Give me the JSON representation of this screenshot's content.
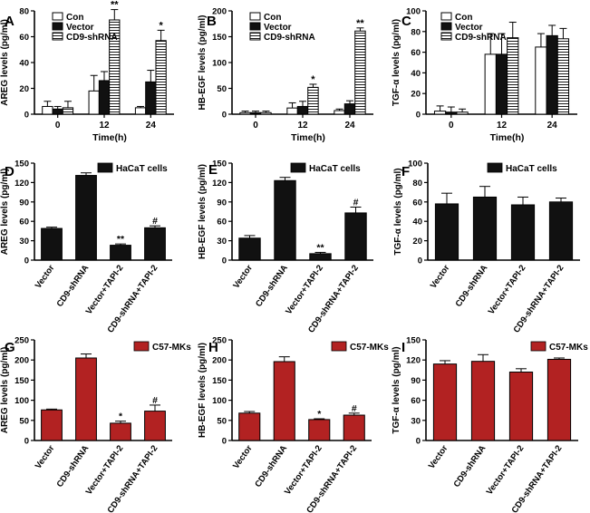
{
  "colors": {
    "black": "#111111",
    "red": "#b22222",
    "white": "#ffffff",
    "axis": "#000000"
  },
  "chart_data": [
    {
      "panel": "A",
      "type": "bar",
      "ylabel": "AREG levels (pg/ml)",
      "xlabel": "Time(h)",
      "ylim": [
        0,
        80
      ],
      "yticks": [
        0,
        20,
        40,
        60,
        80
      ],
      "categories": [
        "0",
        "12",
        "24"
      ],
      "legend": [
        "Con",
        "Vector",
        "CD9-shRNA"
      ],
      "series": [
        {
          "name": "Con",
          "style": "white",
          "values": [
            6,
            18,
            5
          ],
          "errors": [
            4,
            12,
            1
          ]
        },
        {
          "name": "Vector",
          "style": "black",
          "values": [
            4,
            26,
            25
          ],
          "errors": [
            2,
            7,
            9
          ]
        },
        {
          "name": "CD9-shRNA",
          "style": "stripe",
          "values": [
            5,
            73,
            57
          ],
          "errors": [
            5,
            8,
            8
          ]
        }
      ],
      "sig": [
        {
          "cat": 1,
          "series": 2,
          "text": "**"
        },
        {
          "cat": 2,
          "series": 2,
          "text": "*"
        }
      ]
    },
    {
      "panel": "B",
      "type": "bar",
      "ylabel": "HB-EGF levels (pg/ml)",
      "xlabel": "Time(h)",
      "ylim": [
        0,
        200
      ],
      "yticks": [
        0,
        50,
        100,
        150,
        200
      ],
      "categories": [
        "0",
        "12",
        "24"
      ],
      "legend": [
        "Con",
        "Vector",
        "CD9-shRNA"
      ],
      "series": [
        {
          "name": "Con",
          "style": "white",
          "values": [
            3,
            12,
            7
          ],
          "errors": [
            3,
            10,
            3
          ]
        },
        {
          "name": "Vector",
          "style": "black",
          "values": [
            3,
            15,
            20
          ],
          "errors": [
            3,
            10,
            6
          ]
        },
        {
          "name": "CD9-shRNA",
          "style": "stripe",
          "values": [
            3,
            52,
            161
          ],
          "errors": [
            3,
            6,
            6
          ]
        }
      ],
      "sig": [
        {
          "cat": 1,
          "series": 2,
          "text": "*"
        },
        {
          "cat": 2,
          "series": 2,
          "text": "**"
        }
      ]
    },
    {
      "panel": "C",
      "type": "bar",
      "ylabel": "TGF-α levels (pg/ml)",
      "xlabel": "Time(h)",
      "ylim": [
        0,
        100
      ],
      "yticks": [
        0,
        20,
        40,
        60,
        80,
        100
      ],
      "categories": [
        "0",
        "12",
        "24"
      ],
      "legend": [
        "Con",
        "Vector",
        "CD9-shRNA"
      ],
      "series": [
        {
          "name": "Con",
          "style": "white",
          "values": [
            3,
            58,
            65
          ],
          "errors": [
            5,
            20,
            13
          ]
        },
        {
          "name": "Vector",
          "style": "black",
          "values": [
            2,
            58,
            76
          ],
          "errors": [
            5,
            20,
            10
          ]
        },
        {
          "name": "CD9-shRNA",
          "style": "stripe",
          "values": [
            2,
            74,
            73
          ],
          "errors": [
            3,
            15,
            10
          ]
        }
      ],
      "sig": []
    },
    {
      "panel": "D",
      "type": "bar",
      "ylabel": "AREG levels (pg/ml)",
      "ylim": [
        0,
        150
      ],
      "yticks": [
        0,
        30,
        60,
        90,
        120,
        150
      ],
      "categories": [
        "Vector",
        "CD9-shRNA",
        "Vector+TAPI-2",
        "CD9-shRNA+TAPI-2"
      ],
      "legend": [
        "HaCaT cells"
      ],
      "color": "black",
      "values": [
        49,
        131,
        23,
        50
      ],
      "errors": [
        2,
        4,
        2,
        3
      ],
      "sig": [
        {
          "cat": 2,
          "text": "**"
        },
        {
          "cat": 3,
          "text": "#"
        }
      ]
    },
    {
      "panel": "E",
      "type": "bar",
      "ylabel": "HB-EGF levels (pg/ml)",
      "ylim": [
        0,
        150
      ],
      "yticks": [
        0,
        30,
        60,
        90,
        120,
        150
      ],
      "categories": [
        "Vector",
        "CD9-shRNA",
        "Vector+TAPI-2",
        "CD9-shRNA+TAPI-2"
      ],
      "legend": [
        "HaCaT cells"
      ],
      "color": "black",
      "values": [
        34,
        123,
        10,
        73
      ],
      "errors": [
        4,
        5,
        2,
        9
      ],
      "sig": [
        {
          "cat": 2,
          "text": "**"
        },
        {
          "cat": 3,
          "text": "#"
        }
      ]
    },
    {
      "panel": "F",
      "type": "bar",
      "ylabel": "TGF-α levels (pg/ml)",
      "ylim": [
        0,
        100
      ],
      "yticks": [
        0,
        20,
        40,
        60,
        80,
        100
      ],
      "categories": [
        "Vector",
        "CD9-shRNA",
        "Vector+TAPI-2",
        "CD9-shRNA+TAPI-2"
      ],
      "legend": [
        "HaCaT cells"
      ],
      "color": "black",
      "values": [
        58,
        65,
        57,
        60
      ],
      "errors": [
        11,
        11,
        8,
        4
      ],
      "sig": []
    },
    {
      "panel": "G",
      "type": "bar",
      "ylabel": "AREG levels (pg/ml)",
      "ylim": [
        0,
        250
      ],
      "yticks": [
        0,
        50,
        100,
        150,
        200,
        250
      ],
      "categories": [
        "Vector",
        "CD9-shRNA",
        "Vector+TAPI-2",
        "CD9-shRNA+TAPI-2"
      ],
      "legend": [
        "C57-MKs"
      ],
      "color": "red",
      "values": [
        76,
        205,
        43,
        73
      ],
      "errors": [
        2,
        10,
        5,
        15
      ],
      "sig": [
        {
          "cat": 2,
          "text": "*"
        },
        {
          "cat": 3,
          "text": "#"
        }
      ]
    },
    {
      "panel": "H",
      "type": "bar",
      "ylabel": "HB-EGF levels (pg/ml)",
      "ylim": [
        0,
        250
      ],
      "yticks": [
        0,
        50,
        100,
        150,
        200,
        250
      ],
      "categories": [
        "Vector",
        "CD9-shRNA",
        "Vector+TAPI-2",
        "CD9-shRNA+TAPI-2"
      ],
      "legend": [
        "C57-MKs"
      ],
      "color": "red",
      "values": [
        68,
        196,
        52,
        63
      ],
      "errors": [
        4,
        12,
        2,
        5
      ],
      "sig": [
        {
          "cat": 2,
          "text": "*"
        },
        {
          "cat": 3,
          "text": "#"
        }
      ]
    },
    {
      "panel": "I",
      "type": "bar",
      "ylabel": "TGF-α levels (pg/ml)",
      "ylim": [
        0,
        150
      ],
      "yticks": [
        0,
        30,
        60,
        90,
        120,
        150
      ],
      "categories": [
        "Vector",
        "CD9-shRNA",
        "Vector+TAPI-2",
        "CD9-shRNA+TAPI-2"
      ],
      "legend": [
        "C57-MKs"
      ],
      "color": "red",
      "values": [
        114,
        118,
        102,
        121
      ],
      "errors": [
        5,
        10,
        5,
        2
      ],
      "sig": []
    }
  ]
}
